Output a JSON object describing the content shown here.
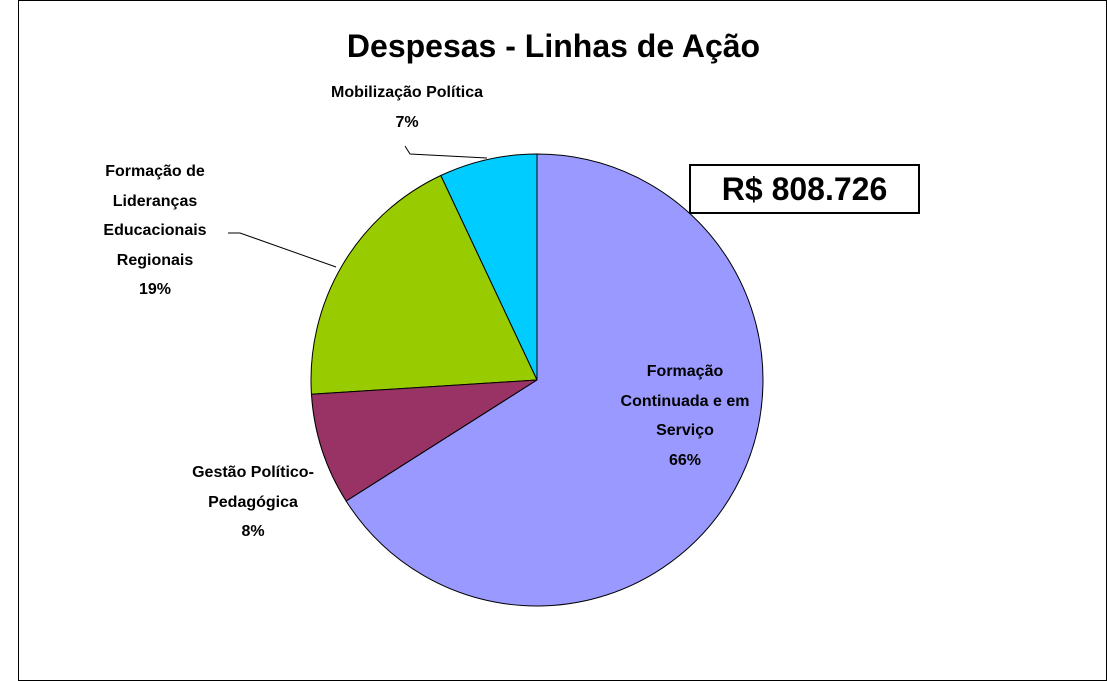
{
  "chart_data": {
    "type": "pie",
    "title": "Despesas - Linhas de Ação",
    "categories": [
      "Formação Continuada e em Serviço",
      "Gestão Político-Pedagógica",
      "Formação de Lideranças Educacionais Regionais",
      "Mobilização Política"
    ],
    "values": [
      66,
      8,
      19,
      7
    ],
    "value_labels": [
      "66%",
      "8%",
      "19%",
      "7%"
    ],
    "colors": [
      "#9999ff",
      "#993366",
      "#99cc00",
      "#00ccff"
    ],
    "annotation": "R$ 808.726"
  }
}
